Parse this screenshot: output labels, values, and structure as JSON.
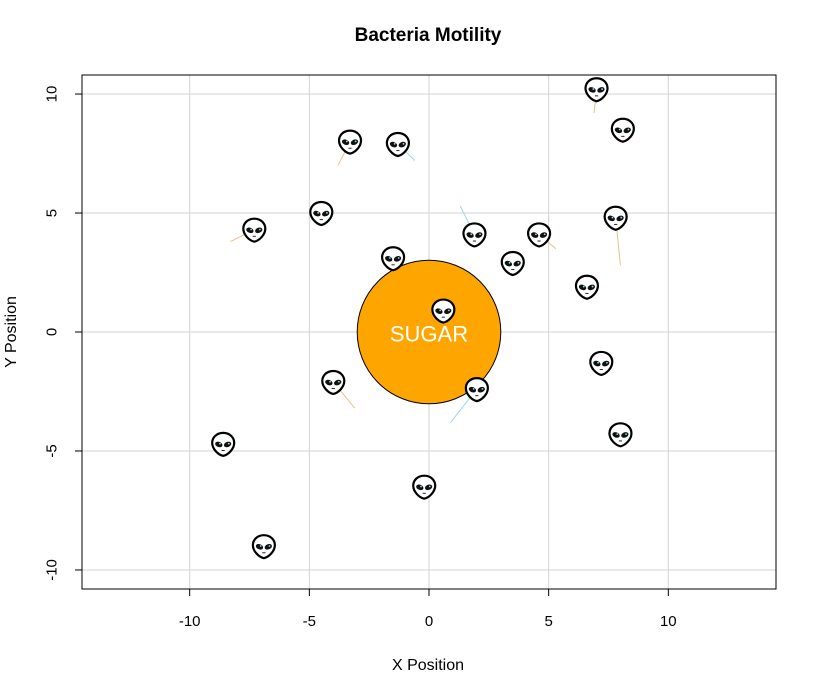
{
  "chart_data": {
    "type": "scatter",
    "title": "Bacteria Motility",
    "xlabel": "X Position",
    "ylabel": "Y Position",
    "xlim": [
      -14.5,
      14.5
    ],
    "ylim": [
      -10.8,
      10.8
    ],
    "x_ticks": [
      -10,
      -5,
      0,
      5,
      10
    ],
    "y_ticks": [
      -10,
      -5,
      0,
      5,
      10
    ],
    "grid": true,
    "sugar": {
      "label": "SUGAR",
      "center": [
        0,
        0
      ],
      "radius": 3,
      "color": "#FFA500"
    },
    "marker": "alien-emoji",
    "bacteria": [
      {
        "x": 7.0,
        "y": 10.2
      },
      {
        "x": 8.1,
        "y": 8.5
      },
      {
        "x": -3.3,
        "y": 8.0
      },
      {
        "x": -1.3,
        "y": 7.9
      },
      {
        "x": -4.5,
        "y": 5.0
      },
      {
        "x": -7.3,
        "y": 4.3
      },
      {
        "x": 7.8,
        "y": 4.8
      },
      {
        "x": 1.9,
        "y": 4.1
      },
      {
        "x": 4.6,
        "y": 4.1
      },
      {
        "x": -1.5,
        "y": 3.1
      },
      {
        "x": 3.5,
        "y": 2.9
      },
      {
        "x": 6.6,
        "y": 1.9
      },
      {
        "x": 0.6,
        "y": 0.9
      },
      {
        "x": 7.2,
        "y": -1.3
      },
      {
        "x": -4.0,
        "y": -2.1
      },
      {
        "x": 2.0,
        "y": -2.4
      },
      {
        "x": 8.0,
        "y": -4.3
      },
      {
        "x": -8.6,
        "y": -4.7
      },
      {
        "x": -0.2,
        "y": -6.5
      },
      {
        "x": -6.9,
        "y": -9.0
      }
    ],
    "trails": [
      {
        "from": [
          7.0,
          10.2
        ],
        "to": [
          6.9,
          9.2
        ],
        "color": "#E6C38C"
      },
      {
        "from": [
          -3.3,
          8.0
        ],
        "to": [
          -3.8,
          7.0
        ],
        "color": "#E6C38C"
      },
      {
        "from": [
          -1.3,
          7.9
        ],
        "to": [
          -0.6,
          7.2
        ],
        "color": "#9ED8E6"
      },
      {
        "from": [
          -7.3,
          4.3
        ],
        "to": [
          -8.3,
          3.8
        ],
        "color": "#E6C38C"
      },
      {
        "from": [
          7.8,
          4.8
        ],
        "to": [
          8.0,
          2.8
        ],
        "color": "#E6C38C"
      },
      {
        "from": [
          1.9,
          4.1
        ],
        "to": [
          1.3,
          5.3
        ],
        "color": "#9ED8E6"
      },
      {
        "from": [
          4.6,
          4.1
        ],
        "to": [
          5.3,
          3.5
        ],
        "color": "#E6C38C"
      },
      {
        "from": [
          -4.0,
          -2.1
        ],
        "to": [
          -3.1,
          -3.2
        ],
        "color": "#E6C38C"
      },
      {
        "from": [
          2.0,
          -2.4
        ],
        "to": [
          0.9,
          -3.8
        ],
        "color": "#9ED8E6"
      }
    ],
    "colors": {
      "grid": "#D3D3D3",
      "sugar_border": "#000000",
      "alien_face": "#FFFFFF",
      "alien_outline": "#000000"
    }
  }
}
